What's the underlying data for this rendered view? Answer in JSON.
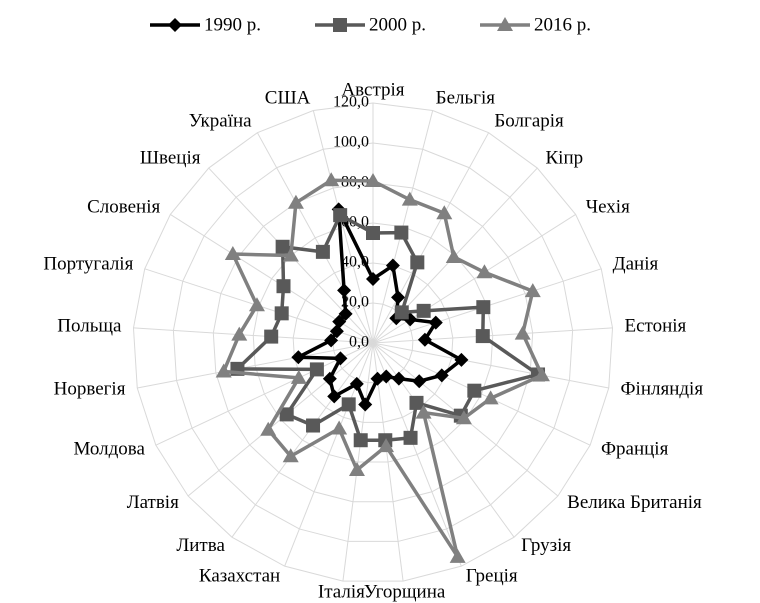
{
  "chart_data": {
    "type": "radar",
    "categories": [
      "Австрія",
      "Бельгія",
      "Болгарія",
      "Кіпр",
      "Чехія",
      "Данія",
      "Естонія",
      "Фінляндія",
      "Франція",
      "Велика Британія",
      "Грузія",
      "Греція",
      "Угорщина",
      "Італія",
      "Казахстан",
      "Литва",
      "Латвія",
      "Молдова",
      "Норвегія",
      "Польща",
      "Португалія",
      "Словенія",
      "Швеція",
      "Україна",
      "США"
    ],
    "series": [
      {
        "name": "1990 р.",
        "color": "#000000",
        "marker": "diamond",
        "values": [
          32,
          40,
          26,
          17,
          22,
          33,
          26,
          45,
          38,
          30,
          22,
          18,
          18,
          31,
          22,
          33,
          28,
          18,
          38,
          21,
          19,
          20,
          20,
          30,
          69
        ]
      },
      {
        "name": "2000 р.",
        "color": "#595959",
        "marker": "square",
        "values": [
          55,
          57,
          46,
          21,
          30,
          58,
          55,
          84,
          56,
          57,
          37,
          51,
          49,
          49,
          33,
          51,
          56,
          31,
          69,
          51,
          48,
          53,
          66,
          52,
          66
        ]
      },
      {
        "name": "2016 р.",
        "color": "#808080",
        "marker": "triangle",
        "values": [
          81,
          74,
          74,
          59,
          66,
          84,
          75,
          86,
          65,
          59,
          43,
          115,
          52,
          64,
          46,
          70,
          68,
          41,
          76,
          67,
          61,
          83,
          60,
          80,
          84
        ]
      }
    ],
    "ylim": [
      0,
      120
    ],
    "yticks": [
      {
        "value": 0,
        "label": "0,0"
      },
      {
        "value": 20,
        "label": "20,0"
      },
      {
        "value": 40,
        "label": "40,0"
      },
      {
        "value": 60,
        "label": "60,0"
      },
      {
        "value": 80,
        "label": "80,0"
      },
      {
        "value": 100,
        "label": "100,0"
      },
      {
        "value": 120,
        "label": "120,0"
      }
    ],
    "grid": true,
    "legend": "top"
  }
}
